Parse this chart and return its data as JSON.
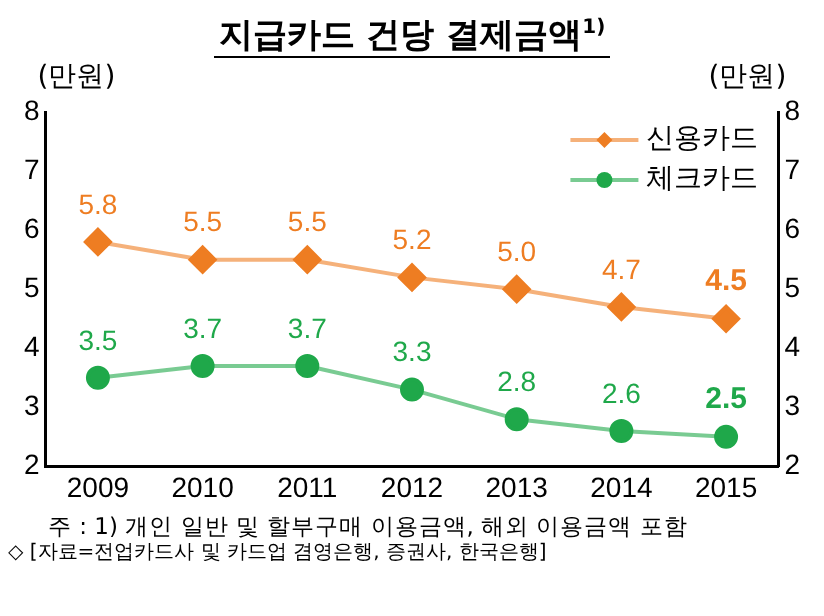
{
  "chart_data": {
    "type": "line",
    "title": "지급카드 건당 결제금액$^{1)}$",
    "ylabel": "(만원)",
    "y2label": "(만원)",
    "categories": [
      "2009",
      "2010",
      "2011",
      "2012",
      "2013",
      "2014",
      "2015"
    ],
    "series": [
      {
        "name": "신용카드",
        "color": "#ee7d22",
        "marker": "diamond",
        "values": [
          5.8,
          5.5,
          5.5,
          5.2,
          5.0,
          4.7,
          4.5
        ],
        "value_labels": [
          "5.8",
          "5.5",
          "5.5",
          "5.2",
          "5.0",
          "4.7",
          "4.5"
        ]
      },
      {
        "name": "체크카드",
        "color": "#1fa84a",
        "marker": "circle",
        "values": [
          3.5,
          3.7,
          3.7,
          3.3,
          2.8,
          2.6,
          2.5
        ],
        "value_labels": [
          "3.5",
          "3.7",
          "3.7",
          "3.3",
          "2.8",
          "2.6",
          "2.5"
        ]
      }
    ],
    "ylim": [
      2,
      8
    ],
    "yticks": [
      2,
      3,
      4,
      5,
      6,
      7,
      8
    ],
    "y2lim": [
      2,
      8
    ],
    "y2ticks": [
      2,
      3,
      4,
      5,
      6,
      7,
      8
    ],
    "grid": false,
    "legend": "top right",
    "annotations": [
      "주 : 1) 개인 일반 및 할부구매 이용금액, 해외 이용금액 포함",
      "◇ [자료=전업카드사 및 카드업 겸영은행, 증권사, 한국은행]"
    ]
  }
}
